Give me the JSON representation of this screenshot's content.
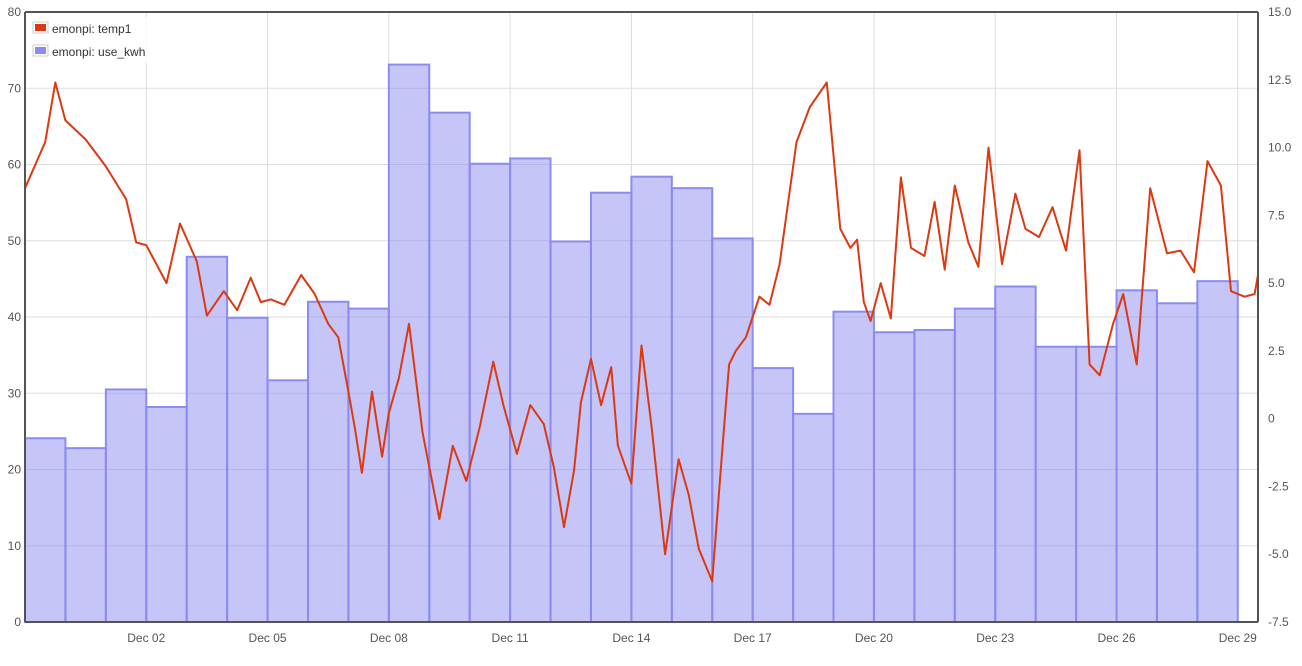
{
  "chart_data": {
    "type": "bar+line",
    "x_axis": {
      "type": "date",
      "range": [
        "2023-11-29",
        "2023-12-29T12:00"
      ],
      "tick_labels": [
        "Dec 02",
        "Dec 05",
        "Dec 08",
        "Dec 11",
        "Dec 14",
        "Dec 17",
        "Dec 20",
        "Dec 23",
        "Dec 26",
        "Dec 29"
      ],
      "tick_dates": [
        "2023-12-02",
        "2023-12-05",
        "2023-12-08",
        "2023-12-11",
        "2023-12-14",
        "2023-12-17",
        "2023-12-20",
        "2023-12-23",
        "2023-12-26",
        "2023-12-29"
      ]
    },
    "y_left": {
      "ylim": [
        0,
        80
      ],
      "ticks": [
        "0",
        "10",
        "20",
        "30",
        "40",
        "50",
        "60",
        "70",
        "80"
      ]
    },
    "y_right": {
      "ylim": [
        -7.5,
        15
      ],
      "ticks": [
        "-7.5",
        "-5.0",
        "-2.5",
        "0",
        "2.5",
        "5.0",
        "7.5",
        "10.0",
        "12.5",
        "15.0"
      ]
    },
    "grid": true,
    "legend_position": "top-left",
    "legend": [
      {
        "name": "emonpi: temp1",
        "color": "#dc3912"
      },
      {
        "name": "emonpi: use_kwh",
        "color": "#8c8cf0"
      }
    ],
    "series": [
      {
        "name": "emonpi: use_kwh",
        "type": "bar",
        "axis": "left",
        "color": "#8c8cf0",
        "dates": [
          "2023-11-29",
          "2023-11-30",
          "2023-12-01",
          "2023-12-02",
          "2023-12-03",
          "2023-12-04",
          "2023-12-05",
          "2023-12-06",
          "2023-12-07",
          "2023-12-08",
          "2023-12-09",
          "2023-12-10",
          "2023-12-11",
          "2023-12-12",
          "2023-12-13",
          "2023-12-14",
          "2023-12-15",
          "2023-12-16",
          "2023-12-17",
          "2023-12-18",
          "2023-12-19",
          "2023-12-20",
          "2023-12-21",
          "2023-12-22",
          "2023-12-23",
          "2023-12-24",
          "2023-12-25",
          "2023-12-26",
          "2023-12-27",
          "2023-12-28",
          "2023-12-29"
        ],
        "values": [
          24.1,
          22.8,
          30.5,
          28.2,
          47.9,
          39.9,
          31.7,
          42.0,
          41.1,
          73.1,
          66.8,
          60.1,
          60.8,
          49.9,
          56.3,
          58.4,
          56.9,
          50.3,
          33.3,
          27.3,
          40.7,
          38.0,
          38.3,
          41.1,
          44.0,
          36.1,
          36.1,
          43.5,
          41.8,
          44.7,
          0
        ]
      },
      {
        "name": "emonpi: temp1",
        "type": "line",
        "axis": "right",
        "color": "#dc3912",
        "x": [
          "2023-11-29T00:00",
          "2023-11-29T12:00",
          "2023-11-29T18:00",
          "2023-11-30T00:00",
          "2023-11-30T12:00",
          "2023-12-01T00:00",
          "2023-12-01T12:00",
          "2023-12-01T18:00",
          "2023-12-02T00:00",
          "2023-12-02T12:00",
          "2023-12-02T20:00",
          "2023-12-03T06:00",
          "2023-12-03T12:00",
          "2023-12-03T22:00",
          "2023-12-04T06:00",
          "2023-12-04T14:00",
          "2023-12-04T20:00",
          "2023-12-05T02:00",
          "2023-12-05T10:00",
          "2023-12-05T20:00",
          "2023-12-06T04:00",
          "2023-12-06T12:00",
          "2023-12-06T18:00",
          "2023-12-07T00:00",
          "2023-12-07T04:00",
          "2023-12-07T08:00",
          "2023-12-07T14:00",
          "2023-12-07T20:00",
          "2023-12-08T00:00",
          "2023-12-08T06:00",
          "2023-12-08T12:00",
          "2023-12-08T20:00",
          "2023-12-09T06:00",
          "2023-12-09T14:00",
          "2023-12-09T22:00",
          "2023-12-10T06:00",
          "2023-12-10T14:00",
          "2023-12-10T20:00",
          "2023-12-11T04:00",
          "2023-12-11T12:00",
          "2023-12-11T20:00",
          "2023-12-12T02:00",
          "2023-12-12T08:00",
          "2023-12-12T14:00",
          "2023-12-12T18:00",
          "2023-12-13T00:00",
          "2023-12-13T06:00",
          "2023-12-13T12:00",
          "2023-12-13T16:00",
          "2023-12-14T00:00",
          "2023-12-14T06:00",
          "2023-12-14T12:00",
          "2023-12-14T20:00",
          "2023-12-15T04:00",
          "2023-12-15T10:00",
          "2023-12-15T16:00",
          "2023-12-16T00:00",
          "2023-12-16T06:00",
          "2023-12-16T10:00",
          "2023-12-16T14:00",
          "2023-12-16T20:00",
          "2023-12-17T04:00",
          "2023-12-17T10:00",
          "2023-12-17T16:00",
          "2023-12-18T02:00",
          "2023-12-18T10:00",
          "2023-12-18T20:00",
          "2023-12-19T04:00",
          "2023-12-19T10:00",
          "2023-12-19T14:00",
          "2023-12-19T18:00",
          "2023-12-19T22:00",
          "2023-12-20T04:00",
          "2023-12-20T10:00",
          "2023-12-20T16:00",
          "2023-12-20T22:00",
          "2023-12-21T06:00",
          "2023-12-21T12:00",
          "2023-12-21T18:00",
          "2023-12-22T00:00",
          "2023-12-22T08:00",
          "2023-12-22T14:00",
          "2023-12-22T20:00",
          "2023-12-23T04:00",
          "2023-12-23T12:00",
          "2023-12-23T18:00",
          "2023-12-24T02:00",
          "2023-12-24T10:00",
          "2023-12-24T18:00",
          "2023-12-25T02:00",
          "2023-12-25T08:00",
          "2023-12-25T14:00",
          "2023-12-25T22:00",
          "2023-12-26T04:00",
          "2023-12-26T12:00",
          "2023-12-26T20:00",
          "2023-12-27T06:00",
          "2023-12-27T14:00",
          "2023-12-27T22:00",
          "2023-12-28T06:00",
          "2023-12-28T14:00",
          "2023-12-28T20:00",
          "2023-12-29T04:00",
          "2023-12-29T10:00",
          "2023-12-29T12:00"
        ],
        "values": [
          8.5,
          10.2,
          12.4,
          11.0,
          10.3,
          9.3,
          8.1,
          6.5,
          6.4,
          5.0,
          7.2,
          5.8,
          3.8,
          4.7,
          4.0,
          5.2,
          4.3,
          4.4,
          4.2,
          5.3,
          4.6,
          3.5,
          3.0,
          1.0,
          -0.4,
          -2.0,
          1.0,
          -1.4,
          0.2,
          1.5,
          3.5,
          -0.5,
          -3.7,
          -1.0,
          -2.3,
          -0.3,
          2.1,
          0.5,
          -1.3,
          0.5,
          -0.2,
          -1.8,
          -4.0,
          -1.9,
          0.6,
          2.2,
          0.5,
          1.9,
          -1.0,
          -2.4,
          2.7,
          -0.3,
          -5.0,
          -1.5,
          -2.8,
          -4.8,
          -6.0,
          -1.1,
          2.0,
          2.5,
          3.0,
          4.5,
          4.2,
          5.7,
          10.2,
          11.5,
          12.4,
          7.0,
          6.3,
          6.6,
          4.3,
          3.6,
          5.0,
          3.7,
          8.9,
          6.3,
          6.0,
          8.0,
          5.5,
          8.6,
          6.5,
          5.6,
          10.0,
          5.7,
          8.3,
          7.0,
          6.7,
          7.8,
          6.2,
          9.9,
          2.0,
          1.6,
          3.5,
          4.6,
          2.0,
          8.5,
          6.1,
          6.2,
          5.4,
          9.5,
          8.6,
          4.7,
          4.5,
          4.6,
          5.3
        ]
      }
    ]
  }
}
